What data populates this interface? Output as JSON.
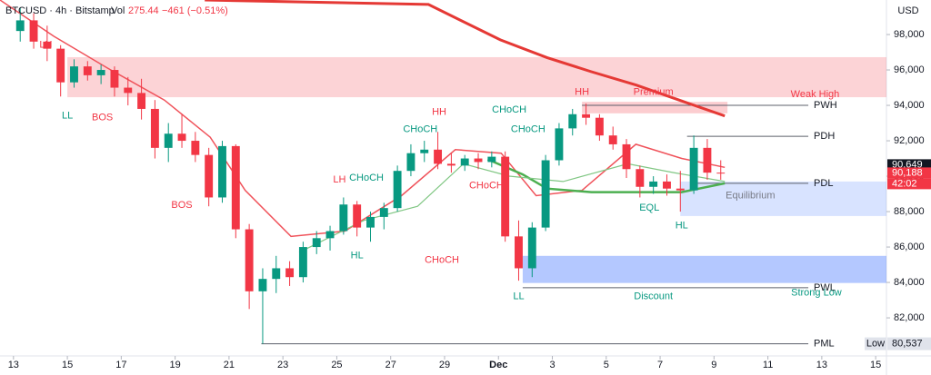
{
  "chart_data": {
    "type": "candlestick",
    "symbol": "BTCUSD · 4h · Bitstamp",
    "volume_label": "Vol",
    "volume": "275.44",
    "change": "−461 (−0.51%)",
    "currency": "USD",
    "xlim": [
      12.5,
      45.4
    ],
    "ylim": [
      79850,
      99950
    ],
    "xticks": [
      13,
      15,
      17,
      19,
      21,
      23,
      25,
      27,
      29,
      {
        "value": 31,
        "label": "Dec"
      },
      {
        "value": 33,
        "label": "3"
      },
      {
        "value": 35,
        "label": "5"
      },
      {
        "value": 37,
        "label": "7"
      },
      {
        "value": 39,
        "label": "9"
      },
      {
        "value": 41,
        "label": "11"
      },
      {
        "value": 43,
        "label": "13"
      },
      {
        "value": 45,
        "label": "15"
      }
    ],
    "yticks": [
      {
        "value": 82000,
        "label": "82,000"
      },
      {
        "value": 84000,
        "label": "84,000"
      },
      {
        "value": 86000,
        "label": "86,000"
      },
      {
        "value": 88000,
        "label": "88,000"
      },
      {
        "value": 90000,
        "label": "90,000"
      },
      {
        "value": 92000,
        "label": "92,000"
      },
      {
        "value": 94000,
        "label": "94,000"
      },
      {
        "value": 96000,
        "label": "96,000"
      },
      {
        "value": 98000,
        "label": "98,000"
      }
    ],
    "up_color": "#089981",
    "down_color": "#f23645",
    "candles": {
      "x": [
        13.25,
        13.75,
        14.25,
        14.75,
        15.25,
        15.75,
        16.25,
        16.75,
        17.25,
        17.75,
        18.25,
        18.75,
        19.25,
        19.75,
        20.25,
        20.75,
        21.25,
        21.75,
        22.25,
        22.75,
        23.25,
        23.75,
        24.25,
        24.75,
        25.25,
        25.75,
        26.25,
        26.75,
        27.25,
        27.75,
        28.25,
        28.75,
        29.25,
        29.75,
        30.25,
        30.75,
        31.25,
        31.75,
        32.25,
        32.75,
        33.25,
        33.75,
        34.25,
        34.75,
        35.25,
        35.75,
        36.25,
        36.75,
        37.25,
        37.75,
        38.25,
        38.75,
        39.25
      ],
      "open": [
        98200,
        98800,
        97600,
        97200,
        95300,
        96200,
        95700,
        96000,
        95000,
        94700,
        93800,
        91600,
        92400,
        92000,
        91200,
        88800,
        91700,
        87000,
        83500,
        84200,
        84800,
        84300,
        86000,
        86500,
        86900,
        88400,
        87100,
        87700,
        88200,
        90300,
        91300,
        91500,
        90700,
        90600,
        91000,
        90800,
        91100,
        86600,
        84800,
        87100,
        90900,
        92700,
        93500,
        93300,
        92300,
        91800,
        90400,
        89400,
        89700,
        89300,
        89200,
        91600,
        90200
      ],
      "high": [
        99500,
        99200,
        98500,
        97400,
        96600,
        96500,
        96300,
        96200,
        95600,
        95500,
        94300,
        93000,
        93500,
        92500,
        91600,
        92000,
        91800,
        87300,
        84800,
        85500,
        85200,
        86300,
        86900,
        87200,
        88800,
        88600,
        88000,
        88500,
        90600,
        91800,
        92000,
        92500,
        91300,
        91200,
        91300,
        91400,
        91400,
        87500,
        87400,
        91200,
        93000,
        93800,
        94100,
        93500,
        92800,
        92100,
        90600,
        90000,
        90100,
        90300,
        92300,
        92100,
        90900
      ],
      "low": [
        97600,
        97200,
        96500,
        94500,
        95000,
        95400,
        95200,
        94500,
        94000,
        93200,
        91000,
        90800,
        91600,
        90800,
        88300,
        88500,
        86500,
        82500,
        80537,
        83400,
        83800,
        84000,
        85600,
        85800,
        86700,
        86600,
        86300,
        87000,
        88000,
        90000,
        90800,
        90400,
        90200,
        90300,
        90400,
        90500,
        86300,
        84100,
        84300,
        86900,
        90600,
        92300,
        92900,
        92000,
        91500,
        89900,
        88800,
        89000,
        88900,
        88000,
        89000,
        89800,
        89800
      ],
      "close": [
        98800,
        97600,
        97200,
        95300,
        96200,
        95700,
        96000,
        95000,
        94700,
        93800,
        91600,
        92400,
        92000,
        91200,
        88800,
        91700,
        87000,
        83500,
        84200,
        84800,
        84300,
        86000,
        86500,
        86900,
        88400,
        87100,
        87700,
        88200,
        90300,
        91300,
        91500,
        90700,
        90600,
        91000,
        90800,
        91100,
        86600,
        84800,
        87100,
        90900,
        92700,
        93500,
        93300,
        92300,
        91800,
        90400,
        89400,
        89700,
        89300,
        89200,
        91600,
        90200,
        90188
      ]
    },
    "lines": [
      {
        "color": "#e53935",
        "width": 3,
        "x": [
          20.1,
          28.4,
          31.07,
          32.8,
          34.45,
          36.1,
          37.8,
          39.4
        ],
        "values": [
          99950,
          99700,
          97700,
          96700,
          95900,
          95150,
          94250,
          93400
        ]
      },
      {
        "color": "#f0525a",
        "width": 1.5,
        "x": [
          12.5,
          14.5,
          16.5,
          18.6,
          20.3,
          21.6,
          23.3,
          25.3,
          27.4,
          29.4,
          31.1,
          32.4,
          34.1,
          36.1,
          37.8,
          39.4
        ],
        "values": [
          99950,
          97900,
          96100,
          94300,
          92200,
          89200,
          86600,
          86900,
          88900,
          91500,
          91300,
          88900,
          89200,
          91800,
          91000,
          90500
        ]
      },
      {
        "color": "#4caf50",
        "width": 2.5,
        "x": [
          30.6,
          31.9,
          32.8,
          34.45,
          36.1,
          37.8,
          39.4
        ],
        "values": [
          90950,
          90100,
          89300,
          89100,
          89100,
          89100,
          89600
        ]
      },
      {
        "color": "#81c784",
        "width": 1.2,
        "x": [
          23.6,
          26.0,
          28.0,
          29.7,
          31.4,
          33.4,
          35.8,
          37.5,
          39.4
        ],
        "values": [
          85700,
          87500,
          88300,
          90700,
          90000,
          89700,
          90700,
          90200,
          89700
        ]
      }
    ],
    "zones": [
      {
        "x": [
          15.0,
          45.4
        ],
        "y": [
          94460,
          96720
        ],
        "color": "rgba(242,54,69,0.22)"
      },
      {
        "x": [
          34.1,
          39.5
        ],
        "y": [
          93550,
          94200
        ],
        "color": "rgba(242,54,69,0.25)"
      },
      {
        "x": [
          37.75,
          45.4
        ],
        "y": [
          87750,
          89700
        ],
        "color": "rgba(41,98,255,0.18)"
      },
      {
        "x": [
          31.9,
          45.4
        ],
        "y": [
          83970,
          85500
        ],
        "color": "rgba(41,98,255,0.35)"
      }
    ],
    "levels": [
      {
        "label": "PWH",
        "value": 94000,
        "x": [
          34.1,
          42.5
        ]
      },
      {
        "label": "PDH",
        "value": 92250,
        "x": [
          38.0,
          42.5
        ]
      },
      {
        "label": "PDL",
        "value": 89600,
        "x": [
          38.4,
          42.5
        ]
      },
      {
        "label": "PWL",
        "value": 83700,
        "x": [
          31.9,
          42.5
        ]
      },
      {
        "label": "PML",
        "value": 80537,
        "x": [
          22.2,
          42.5
        ]
      }
    ],
    "annotations": [
      {
        "text": "LH",
        "x": 14.2,
        "y": 97400,
        "color": "#f23645"
      },
      {
        "text": "LL",
        "x": 15.0,
        "y": 93400,
        "color": "#089981"
      },
      {
        "text": "BOS",
        "x": 16.3,
        "y": 93300,
        "color": "#f23645"
      },
      {
        "text": "BOS",
        "x": 19.25,
        "y": 88350,
        "color": "#f23645"
      },
      {
        "text": "LH",
        "x": 25.1,
        "y": 89800,
        "color": "#f23645"
      },
      {
        "text": "HL",
        "x": 25.75,
        "y": 85500,
        "color": "#089981"
      },
      {
        "text": "CHoCH",
        "x": 26.1,
        "y": 89900,
        "color": "#089981"
      },
      {
        "text": "CHoCH",
        "x": 28.1,
        "y": 92650,
        "color": "#089981"
      },
      {
        "text": "HH",
        "x": 28.8,
        "y": 93600,
        "color": "#f23645"
      },
      {
        "text": "CHoCH",
        "x": 31.4,
        "y": 93750,
        "color": "#089981"
      },
      {
        "text": "CHoCH",
        "x": 32.1,
        "y": 92650,
        "color": "#089981"
      },
      {
        "text": "CHoCH",
        "x": 30.55,
        "y": 89450,
        "color": "#f23645"
      },
      {
        "text": "CHoCH",
        "x": 28.9,
        "y": 85250,
        "color": "#f23645"
      },
      {
        "text": "HH",
        "x": 34.1,
        "y": 94750,
        "color": "#f23645"
      },
      {
        "text": "Premium",
        "x": 36.75,
        "y": 94750,
        "color": "#f23645"
      },
      {
        "text": "Weak High",
        "x": 42.75,
        "y": 94600,
        "color": "#f23645"
      },
      {
        "text": "Equilibrium",
        "x": 40.35,
        "y": 88900,
        "color": "#787b86"
      },
      {
        "text": "EQL",
        "x": 36.6,
        "y": 88200,
        "color": "#089981"
      },
      {
        "text": "HL",
        "x": 37.8,
        "y": 87200,
        "color": "#089981"
      },
      {
        "text": "LL",
        "x": 31.75,
        "y": 83200,
        "color": "#089981"
      },
      {
        "text": "Discount",
        "x": 36.75,
        "y": 83200,
        "color": "#089981"
      },
      {
        "text": "Strong Low",
        "x": 42.8,
        "y": 83400,
        "color": "#089981"
      }
    ],
    "price_tags": [
      {
        "value": 90649,
        "label": "90,649",
        "color": "#131722"
      },
      {
        "value": 90188,
        "label": "90,188",
        "color": "#f23645"
      }
    ],
    "countdown": "42:02",
    "low": {
      "label": "Low",
      "value": 80537,
      "value_label": "80,537"
    }
  }
}
